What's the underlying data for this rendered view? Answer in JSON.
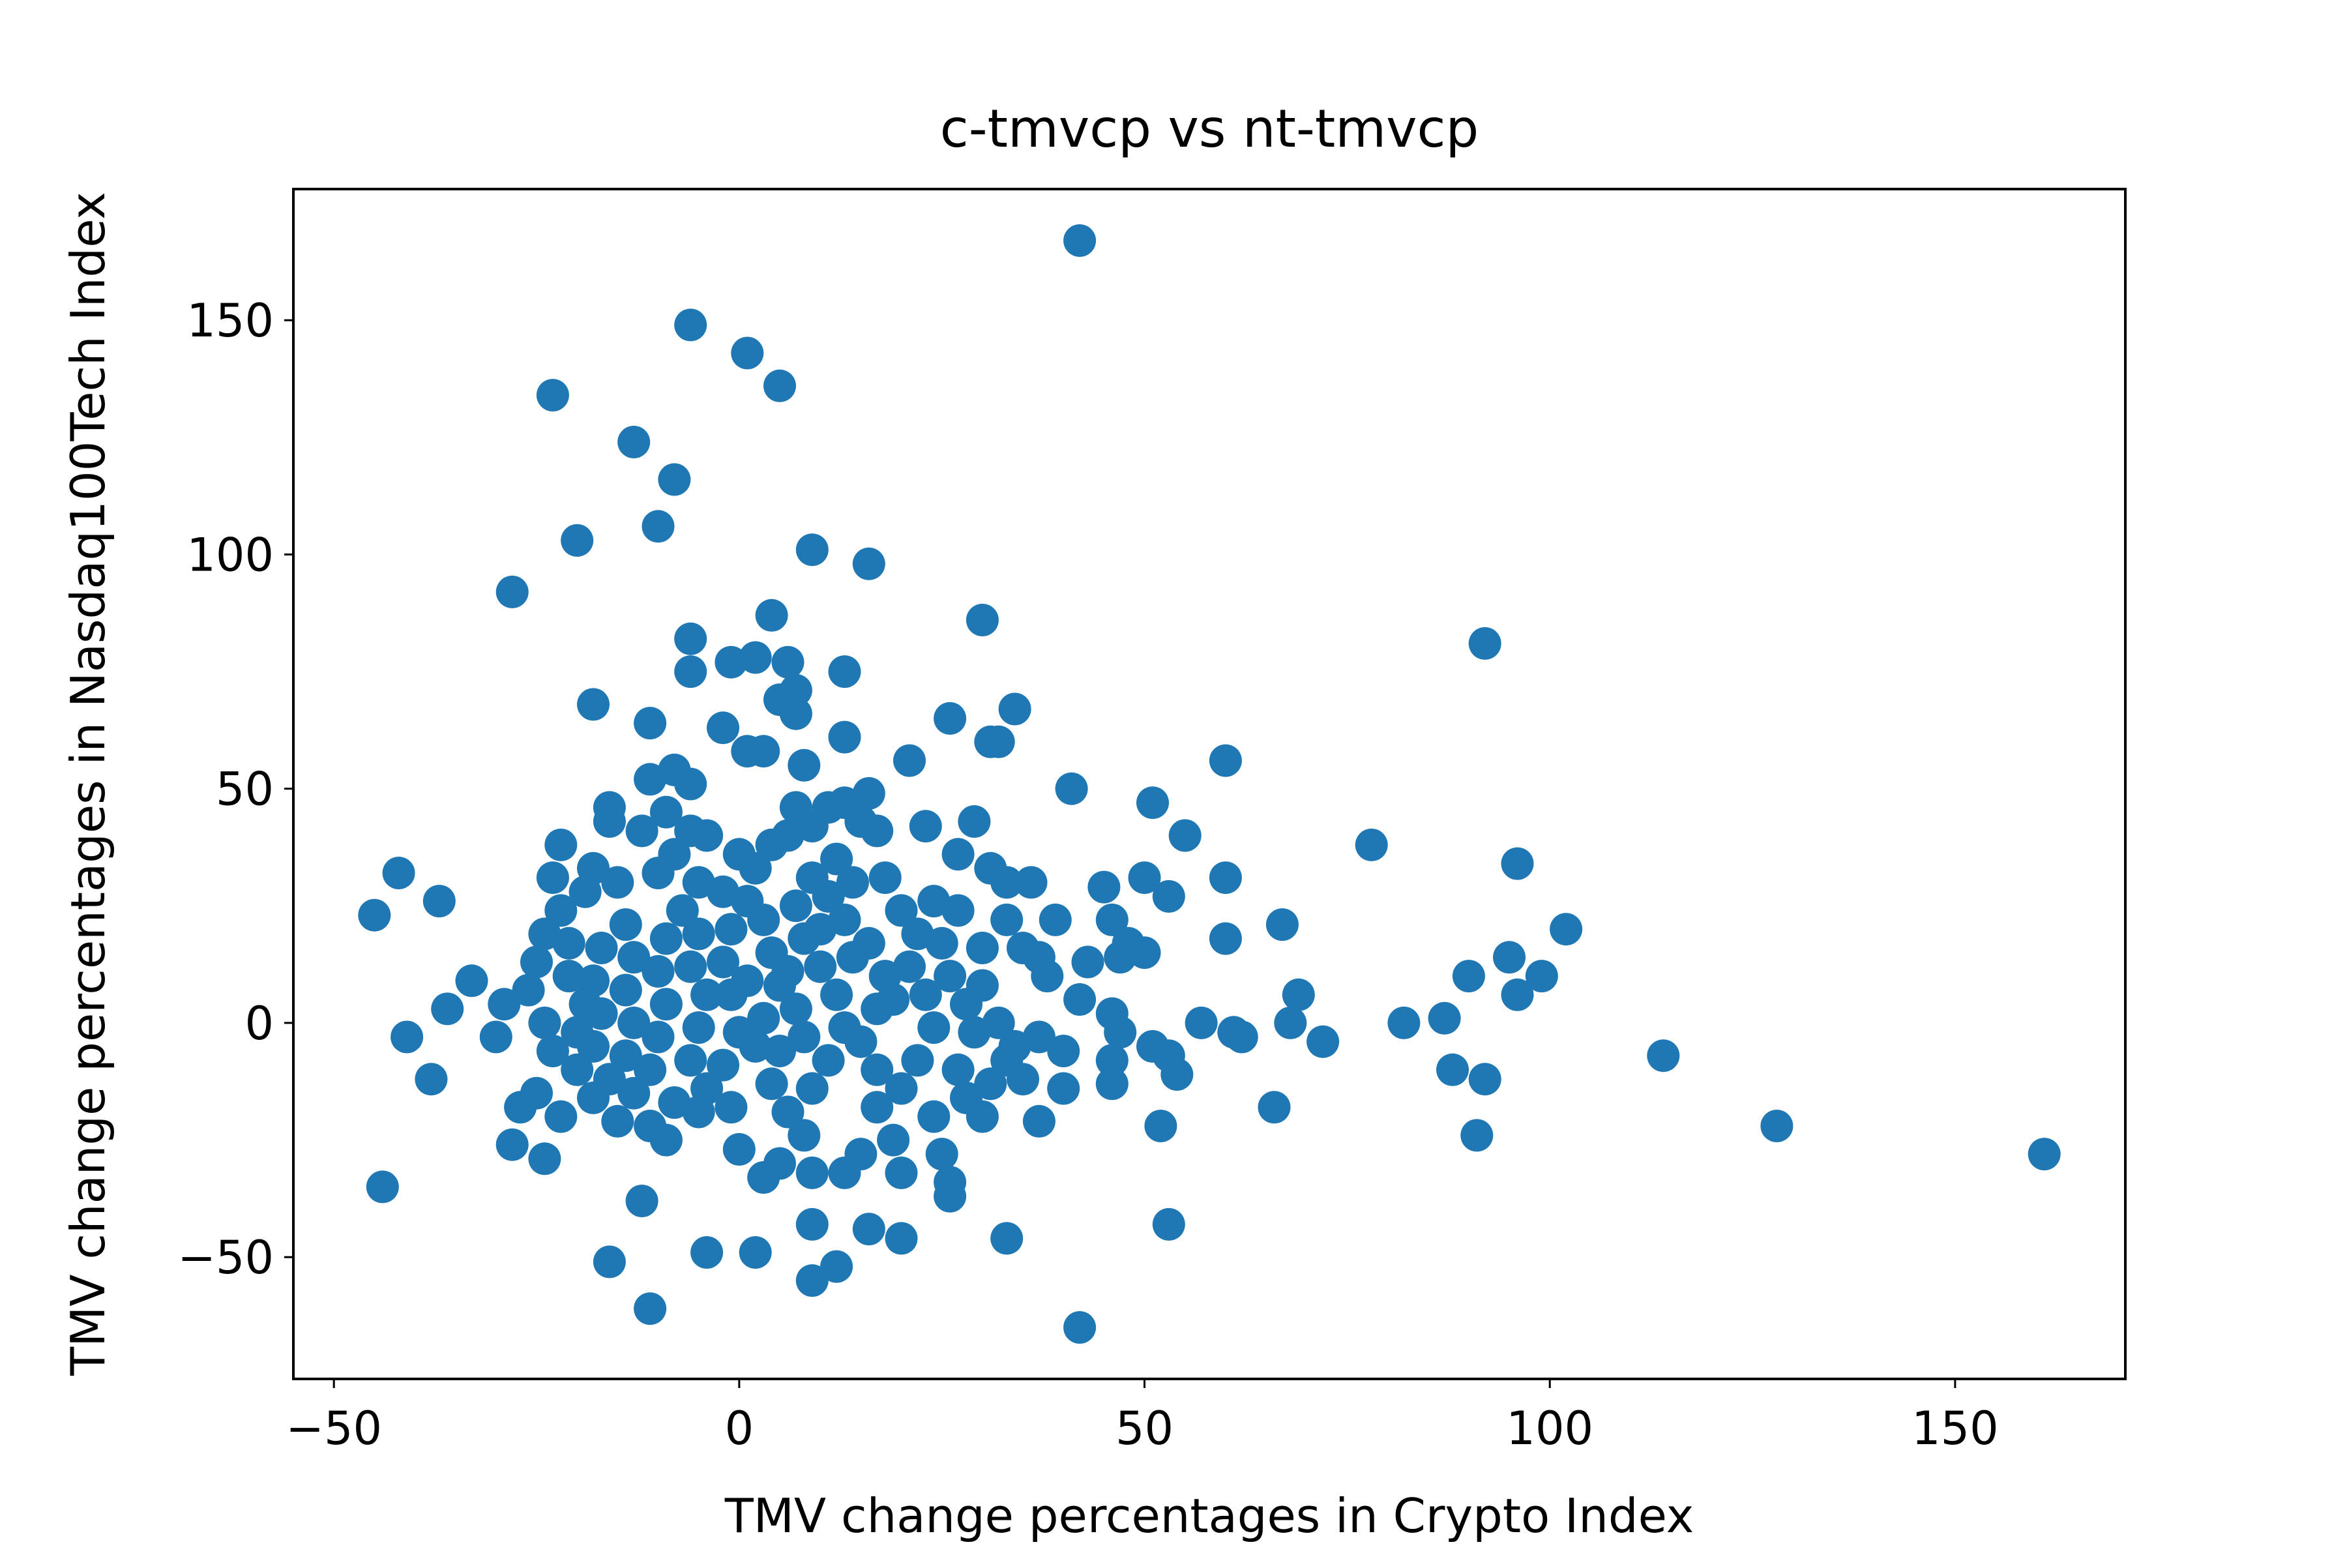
{
  "chart_data": {
    "type": "scatter",
    "title": "c-tmvcp vs nt-tmvcp",
    "xlabel": "TMV change percentages in Crypto Index",
    "ylabel": "TMV change percentages in Nasdaq100Tech Index",
    "xlim": [
      -55,
      171
    ],
    "ylim": [
      -76,
      178
    ],
    "xticks": [
      -50,
      0,
      50,
      100,
      150
    ],
    "yticks": [
      -50,
      0,
      50,
      100,
      150
    ],
    "xtick_labels": [
      "−50",
      "0",
      "50",
      "100",
      "150"
    ],
    "ytick_labels": [
      "−50",
      "0",
      "50",
      "100",
      "150"
    ],
    "grid": false,
    "legend": "none",
    "marker_color": "#1f77b4",
    "points": [
      {
        "x": 42,
        "y": 167
      },
      {
        "x": -6,
        "y": 149
      },
      {
        "x": 1,
        "y": 143
      },
      {
        "x": 5,
        "y": 136
      },
      {
        "x": -23,
        "y": 134
      },
      {
        "x": -13,
        "y": 124
      },
      {
        "x": -8,
        "y": 116
      },
      {
        "x": -10,
        "y": 106
      },
      {
        "x": -20,
        "y": 103
      },
      {
        "x": 9,
        "y": 101
      },
      {
        "x": 16,
        "y": 98
      },
      {
        "x": -28,
        "y": 92
      },
      {
        "x": 30,
        "y": 86
      },
      {
        "x": 4,
        "y": 87
      },
      {
        "x": 92,
        "y": 81
      },
      {
        "x": -6,
        "y": 82
      },
      {
        "x": -6,
        "y": 75
      },
      {
        "x": -1,
        "y": 77
      },
      {
        "x": 2,
        "y": 78
      },
      {
        "x": 6,
        "y": 77
      },
      {
        "x": 13,
        "y": 75
      },
      {
        "x": 5,
        "y": 69
      },
      {
        "x": 7,
        "y": 71
      },
      {
        "x": 7,
        "y": 66
      },
      {
        "x": -18,
        "y": 68
      },
      {
        "x": -11,
        "y": 64
      },
      {
        "x": -2,
        "y": 63
      },
      {
        "x": 34,
        "y": 67
      },
      {
        "x": 26,
        "y": 65
      },
      {
        "x": 13,
        "y": 61
      },
      {
        "x": 31,
        "y": 60
      },
      {
        "x": 32,
        "y": 60
      },
      {
        "x": 1,
        "y": 58
      },
      {
        "x": 3,
        "y": 58
      },
      {
        "x": 21,
        "y": 56
      },
      {
        "x": 60,
        "y": 56
      },
      {
        "x": 8,
        "y": 55
      },
      {
        "x": -8,
        "y": 54
      },
      {
        "x": -11,
        "y": 52
      },
      {
        "x": -6,
        "y": 51
      },
      {
        "x": 41,
        "y": 50
      },
      {
        "x": 51,
        "y": 47
      },
      {
        "x": 16,
        "y": 49
      },
      {
        "x": -16,
        "y": 46
      },
      {
        "x": 7,
        "y": 46
      },
      {
        "x": -4,
        "y": 40
      },
      {
        "x": 55,
        "y": 40
      },
      {
        "x": 78,
        "y": 38
      },
      {
        "x": -22,
        "y": 38
      },
      {
        "x": 96,
        "y": 34
      },
      {
        "x": 17,
        "y": 41
      },
      {
        "x": 23,
        "y": 42
      },
      {
        "x": 29,
        "y": 43
      },
      {
        "x": 45,
        "y": 29
      },
      {
        "x": 50,
        "y": 31
      },
      {
        "x": 60,
        "y": 31
      },
      {
        "x": 36,
        "y": 30
      },
      {
        "x": -42,
        "y": 32
      },
      {
        "x": -45,
        "y": 23
      },
      {
        "x": -37,
        "y": 26
      },
      {
        "x": -33,
        "y": 9
      },
      {
        "x": -36,
        "y": 3
      },
      {
        "x": -41,
        "y": -3
      },
      {
        "x": -38,
        "y": -12
      },
      {
        "x": -44,
        "y": -35
      },
      {
        "x": -29,
        "y": 4
      },
      {
        "x": -30,
        "y": -3
      },
      {
        "x": -28,
        "y": -26
      },
      {
        "x": -24,
        "y": -29
      },
      {
        "x": -27,
        "y": -18
      },
      {
        "x": -25,
        "y": -15
      },
      {
        "x": -22,
        "y": -20
      },
      {
        "x": -16,
        "y": -51
      },
      {
        "x": -11,
        "y": -61
      },
      {
        "x": -12,
        "y": -38
      },
      {
        "x": -4,
        "y": -49
      },
      {
        "x": 2,
        "y": -49
      },
      {
        "x": 9,
        "y": -55
      },
      {
        "x": 12,
        "y": -52
      },
      {
        "x": 9,
        "y": -43
      },
      {
        "x": 16,
        "y": -44
      },
      {
        "x": 20,
        "y": -46
      },
      {
        "x": 33,
        "y": -46
      },
      {
        "x": 42,
        "y": -65
      },
      {
        "x": 53,
        "y": -43
      },
      {
        "x": 26,
        "y": -37
      },
      {
        "x": 37,
        "y": -21
      },
      {
        "x": 52,
        "y": -22
      },
      {
        "x": 66,
        "y": -18
      },
      {
        "x": 40,
        "y": -14
      },
      {
        "x": 54,
        "y": -11
      },
      {
        "x": 46,
        "y": -13
      },
      {
        "x": 114,
        "y": -7
      },
      {
        "x": 128,
        "y": -22
      },
      {
        "x": 161,
        "y": -28
      },
      {
        "x": 91,
        "y": -24
      },
      {
        "x": 92,
        "y": -12
      },
      {
        "x": 88,
        "y": -10
      },
      {
        "x": 102,
        "y": 20
      },
      {
        "x": 95,
        "y": 14
      },
      {
        "x": 99,
        "y": 10
      },
      {
        "x": 96,
        "y": 6
      },
      {
        "x": 90,
        "y": 10
      },
      {
        "x": 87,
        "y": 1
      },
      {
        "x": 82,
        "y": 0
      },
      {
        "x": 72,
        "y": -4
      },
      {
        "x": 68,
        "y": 0
      },
      {
        "x": 69,
        "y": 6
      },
      {
        "x": 67,
        "y": 21
      },
      {
        "x": 60,
        "y": 18
      },
      {
        "x": 61,
        "y": -2
      },
      {
        "x": 62,
        "y": -3
      },
      {
        "x": 57,
        "y": 0
      },
      {
        "x": 53,
        "y": 27
      },
      {
        "x": 51,
        "y": -5
      },
      {
        "x": 53,
        "y": -7
      },
      {
        "x": 50,
        "y": 15
      },
      {
        "x": 48,
        "y": 17
      },
      {
        "x": 46,
        "y": 22
      },
      {
        "x": 47,
        "y": 14
      },
      {
        "x": 43,
        "y": 13
      },
      {
        "x": 46,
        "y": 2
      },
      {
        "x": 47,
        "y": -2
      },
      {
        "x": 46,
        "y": -8
      },
      {
        "x": 39,
        "y": 22
      },
      {
        "x": 42,
        "y": 5
      },
      {
        "x": 38,
        "y": 10
      },
      {
        "x": 35,
        "y": 16
      },
      {
        "x": 37,
        "y": 14
      },
      {
        "x": 40,
        "y": -6
      },
      {
        "x": 37,
        "y": -3
      },
      {
        "x": 34,
        "y": -5
      },
      {
        "x": 33,
        "y": 30
      },
      {
        "x": 31,
        "y": 33
      },
      {
        "x": 27,
        "y": 36
      },
      {
        "x": 24,
        "y": 26
      },
      {
        "x": 25,
        "y": 17
      },
      {
        "x": 30,
        "y": 8
      },
      {
        "x": 29,
        "y": -2
      },
      {
        "x": 27,
        "y": -10
      },
      {
        "x": 30,
        "y": -20
      },
      {
        "x": 25,
        "y": -28
      },
      {
        "x": 26,
        "y": -34
      },
      {
        "x": 20,
        "y": -32
      },
      {
        "x": 19,
        "y": -25
      },
      {
        "x": 17,
        "y": -18
      },
      {
        "x": 15,
        "y": -28
      },
      {
        "x": 13,
        "y": -32
      },
      {
        "x": 9,
        "y": -32
      },
      {
        "x": 8,
        "y": -24
      },
      {
        "x": 5,
        "y": -30
      },
      {
        "x": 3,
        "y": -33
      },
      {
        "x": 0,
        "y": -27
      },
      {
        "x": -1,
        "y": -18
      },
      {
        "x": -5,
        "y": -19
      },
      {
        "x": -9,
        "y": -25
      },
      {
        "x": -11,
        "y": -22
      },
      {
        "x": -15,
        "y": -21
      },
      {
        "x": -18,
        "y": -16
      },
      {
        "x": -20,
        "y": -10
      },
      {
        "x": -23,
        "y": -6
      },
      {
        "x": -24,
        "y": 0
      },
      {
        "x": -26,
        "y": 7
      },
      {
        "x": -25,
        "y": 13
      },
      {
        "x": -24,
        "y": 19
      },
      {
        "x": -22,
        "y": 24
      },
      {
        "x": -23,
        "y": 31
      },
      {
        "x": -19,
        "y": 28
      },
      {
        "x": -18,
        "y": 33
      },
      {
        "x": -15,
        "y": 30
      },
      {
        "x": -16,
        "y": 43
      },
      {
        "x": -12,
        "y": 41
      },
      {
        "x": -9,
        "y": 45
      },
      {
        "x": -6,
        "y": 41
      },
      {
        "x": -8,
        "y": 36
      },
      {
        "x": -10,
        "y": 32
      },
      {
        "x": -5,
        "y": 30
      },
      {
        "x": -2,
        "y": 28
      },
      {
        "x": 0,
        "y": 36
      },
      {
        "x": 2,
        "y": 33
      },
      {
        "x": 4,
        "y": 38
      },
      {
        "x": 6,
        "y": 40
      },
      {
        "x": 9,
        "y": 42
      },
      {
        "x": 11,
        "y": 46
      },
      {
        "x": 13,
        "y": 47
      },
      {
        "x": 15,
        "y": 43
      },
      {
        "x": 12,
        "y": 35
      },
      {
        "x": 14,
        "y": 30
      },
      {
        "x": 18,
        "y": 31
      },
      {
        "x": 20,
        "y": 24
      },
      {
        "x": 22,
        "y": 19
      },
      {
        "x": 21,
        "y": 12
      },
      {
        "x": 23,
        "y": 6
      },
      {
        "x": 24,
        "y": -1
      },
      {
        "x": 22,
        "y": -8
      },
      {
        "x": 20,
        "y": -14
      },
      {
        "x": 17,
        "y": -10
      },
      {
        "x": 15,
        "y": -4
      },
      {
        "x": 17,
        "y": 3
      },
      {
        "x": 18,
        "y": 10
      },
      {
        "x": 16,
        "y": 17
      },
      {
        "x": 13,
        "y": 22
      },
      {
        "x": 11,
        "y": 27
      },
      {
        "x": 9,
        "y": 31
      },
      {
        "x": 7,
        "y": 25
      },
      {
        "x": 8,
        "y": 18
      },
      {
        "x": 10,
        "y": 12
      },
      {
        "x": 12,
        "y": 6
      },
      {
        "x": 13,
        "y": -1
      },
      {
        "x": 11,
        "y": -8
      },
      {
        "x": 9,
        "y": -14
      },
      {
        "x": 6,
        "y": -19
      },
      {
        "x": 4,
        "y": -13
      },
      {
        "x": 5,
        "y": -6
      },
      {
        "x": 3,
        "y": 1
      },
      {
        "x": 5,
        "y": 8
      },
      {
        "x": 4,
        "y": 15
      },
      {
        "x": 3,
        "y": 22
      },
      {
        "x": 1,
        "y": 26
      },
      {
        "x": -1,
        "y": 20
      },
      {
        "x": -2,
        "y": 13
      },
      {
        "x": -1,
        "y": 6
      },
      {
        "x": 0,
        "y": -2
      },
      {
        "x": -2,
        "y": -9
      },
      {
        "x": -4,
        "y": -14
      },
      {
        "x": -6,
        "y": -8
      },
      {
        "x": -5,
        "y": -1
      },
      {
        "x": -4,
        "y": 6
      },
      {
        "x": -6,
        "y": 12
      },
      {
        "x": -5,
        "y": 19
      },
      {
        "x": -7,
        "y": 24
      },
      {
        "x": -9,
        "y": 18
      },
      {
        "x": -10,
        "y": 11
      },
      {
        "x": -9,
        "y": 4
      },
      {
        "x": -10,
        "y": -3
      },
      {
        "x": -11,
        "y": -10
      },
      {
        "x": -13,
        "y": -15
      },
      {
        "x": -14,
        "y": -7
      },
      {
        "x": -13,
        "y": 0
      },
      {
        "x": -14,
        "y": 7
      },
      {
        "x": -13,
        "y": 14
      },
      {
        "x": -14,
        "y": 21
      },
      {
        "x": -17,
        "y": 16
      },
      {
        "x": -18,
        "y": 9
      },
      {
        "x": -17,
        "y": 2
      },
      {
        "x": -18,
        "y": -5
      },
      {
        "x": -19,
        "y": 4
      },
      {
        "x": -21,
        "y": 10
      },
      {
        "x": -21,
        "y": 17
      },
      {
        "x": -20,
        "y": -2
      },
      {
        "x": -16,
        "y": -12
      },
      {
        "x": -8,
        "y": -17
      },
      {
        "x": 1,
        "y": 9
      },
      {
        "x": 2,
        "y": -5
      },
      {
        "x": 7,
        "y": 3
      },
      {
        "x": 8,
        "y": -3
      },
      {
        "x": 6,
        "y": 11
      },
      {
        "x": 10,
        "y": 20
      },
      {
        "x": 14,
        "y": 14
      },
      {
        "x": 19,
        "y": 5
      },
      {
        "x": 26,
        "y": 10
      },
      {
        "x": 28,
        "y": 4
      },
      {
        "x": 32,
        "y": 0
      },
      {
        "x": 33,
        "y": -8
      },
      {
        "x": 35,
        "y": -12
      },
      {
        "x": 31,
        "y": -13
      },
      {
        "x": 28,
        "y": -16
      },
      {
        "x": 24,
        "y": -20
      },
      {
        "x": 27,
        "y": 24
      },
      {
        "x": 33,
        "y": 22
      },
      {
        "x": 30,
        "y": 16
      }
    ]
  }
}
